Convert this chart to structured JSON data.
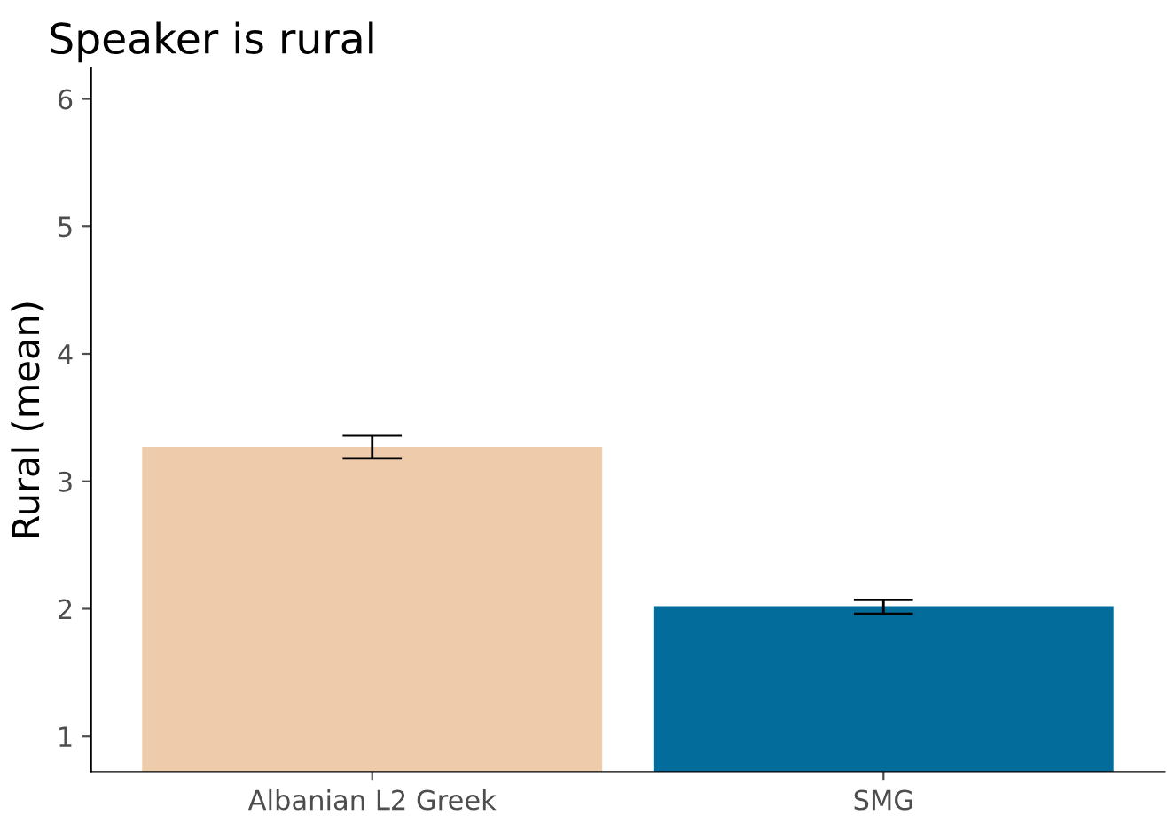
{
  "chart_data": {
    "type": "bar",
    "title": "Speaker is rural",
    "ylabel": "Rural (mean)",
    "categories": [
      "Albanian L2 Greek",
      "SMG"
    ],
    "values": [
      3.27,
      2.02
    ],
    "colors": [
      "#edcbab",
      "#046c9a"
    ],
    "errors": [
      [
        3.18,
        3.36
      ],
      [
        1.96,
        2.07
      ]
    ],
    "ylim": [
      0.72,
      6.24
    ],
    "yticks": [
      1,
      2,
      3,
      4,
      5,
      6
    ],
    "grid": false,
    "legend": false
  }
}
